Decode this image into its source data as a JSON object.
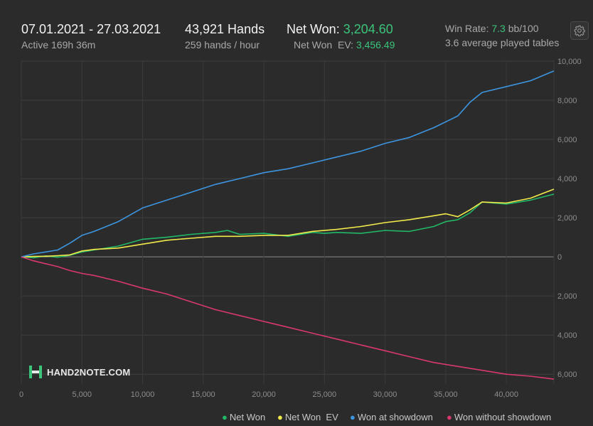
{
  "header": {
    "date_range": "07.01.2021 - 27.03.2021",
    "active": "Active 169h 36m",
    "hands": "43,921 Hands",
    "hands_per_hour": "259 hands / hour",
    "net_won_label": "Net Won:",
    "net_won_value": "3,204.60",
    "net_won_ev_label": "Net Won  EV:",
    "net_won_ev_value": "3,456.49",
    "win_rate_label": "Win Rate:",
    "win_rate_value": "7.3",
    "win_rate_unit": "bb/100",
    "avg_tables": "3.6 average played tables"
  },
  "logo": {
    "text": "HAND2NOTE.COM"
  },
  "icons": {
    "settings": "gear-icon",
    "logo": "hand2note-logo-icon"
  },
  "colors": {
    "background": "#2b2b2b",
    "net_won": "#21b867",
    "net_won_ev": "#f2e94a",
    "won_showdown": "#3d95e0",
    "won_without_showdown": "#d8386d",
    "accent_green": "#3bc47a"
  },
  "legend": [
    {
      "label": "Net Won",
      "color": "#21b867"
    },
    {
      "label": "Net Won  EV",
      "color": "#f2e94a"
    },
    {
      "label": "Won at showdown",
      "color": "#3d95e0"
    },
    {
      "label": "Won without showdown",
      "color": "#d8386d"
    }
  ],
  "chart_data": {
    "type": "line",
    "title": "",
    "xlabel": "",
    "ylabel": "",
    "xlim": [
      0,
      43921
    ],
    "ylim": [
      -6500,
      10000
    ],
    "x_ticks": [
      0,
      5000,
      10000,
      15000,
      20000,
      25000,
      30000,
      35000,
      40000
    ],
    "x_tick_labels": [
      "0",
      "5,000",
      "10,000",
      "15,000",
      "20,000",
      "25,000",
      "30,000",
      "35,000",
      "40,000"
    ],
    "y_ticks": [
      10000,
      8000,
      6000,
      4000,
      2000,
      0,
      -2000,
      -4000,
      -6000
    ],
    "y_tick_labels": [
      "10,000",
      "8,000",
      "6,000",
      "4,000",
      "2,000",
      "0",
      "2,000",
      "4,000",
      "6,000"
    ],
    "grid": true,
    "legend_position": "bottom-right",
    "series": [
      {
        "name": "Net Won",
        "color": "#21b867",
        "x": [
          0,
          1000,
          2000,
          3000,
          4000,
          5000,
          6000,
          8000,
          10000,
          12000,
          14000,
          16000,
          17000,
          18000,
          20000,
          22000,
          24000,
          25000,
          26000,
          28000,
          30000,
          32000,
          34000,
          35000,
          36000,
          37000,
          38000,
          40000,
          42000,
          43921
        ],
        "y": [
          0,
          -50,
          50,
          -20,
          80,
          250,
          350,
          550,
          900,
          1000,
          1150,
          1250,
          1350,
          1150,
          1200,
          1050,
          1250,
          1200,
          1250,
          1200,
          1350,
          1300,
          1550,
          1800,
          1900,
          2250,
          2800,
          2700,
          2900,
          3204.6
        ]
      },
      {
        "name": "Net Won  EV",
        "color": "#f2e94a",
        "x": [
          0,
          1000,
          2000,
          3000,
          4000,
          5000,
          6000,
          8000,
          10000,
          12000,
          14000,
          16000,
          18000,
          20000,
          22000,
          24000,
          26000,
          28000,
          30000,
          32000,
          34000,
          35000,
          36000,
          37000,
          38000,
          40000,
          42000,
          43921
        ],
        "y": [
          0,
          20,
          30,
          60,
          100,
          300,
          380,
          450,
          650,
          850,
          950,
          1050,
          1050,
          1100,
          1100,
          1300,
          1400,
          1550,
          1750,
          1900,
          2100,
          2200,
          2050,
          2400,
          2800,
          2750,
          3000,
          3456.49
        ]
      },
      {
        "name": "Won at showdown",
        "color": "#3d95e0",
        "x": [
          0,
          1000,
          2000,
          3000,
          4000,
          5000,
          6000,
          8000,
          10000,
          12000,
          14000,
          16000,
          18000,
          20000,
          22000,
          24000,
          26000,
          28000,
          30000,
          32000,
          34000,
          36000,
          37000,
          38000,
          40000,
          42000,
          43921
        ],
        "y": [
          0,
          150,
          250,
          350,
          700,
          1100,
          1300,
          1800,
          2500,
          2900,
          3300,
          3700,
          4000,
          4300,
          4500,
          4800,
          5100,
          5400,
          5800,
          6100,
          6600,
          7200,
          7900,
          8400,
          8700,
          9000,
          9500
        ]
      },
      {
        "name": "Won without showdown",
        "color": "#d8386d",
        "x": [
          0,
          1000,
          2000,
          3000,
          4000,
          5000,
          6000,
          8000,
          10000,
          12000,
          14000,
          16000,
          18000,
          20000,
          22000,
          24000,
          26000,
          28000,
          30000,
          32000,
          34000,
          36000,
          38000,
          40000,
          42000,
          43921
        ],
        "y": [
          0,
          -200,
          -350,
          -500,
          -700,
          -850,
          -950,
          -1250,
          -1600,
          -1900,
          -2300,
          -2700,
          -3000,
          -3300,
          -3600,
          -3900,
          -4200,
          -4500,
          -4800,
          -5100,
          -5400,
          -5600,
          -5800,
          -6000,
          -6100,
          -6250
        ]
      }
    ]
  }
}
